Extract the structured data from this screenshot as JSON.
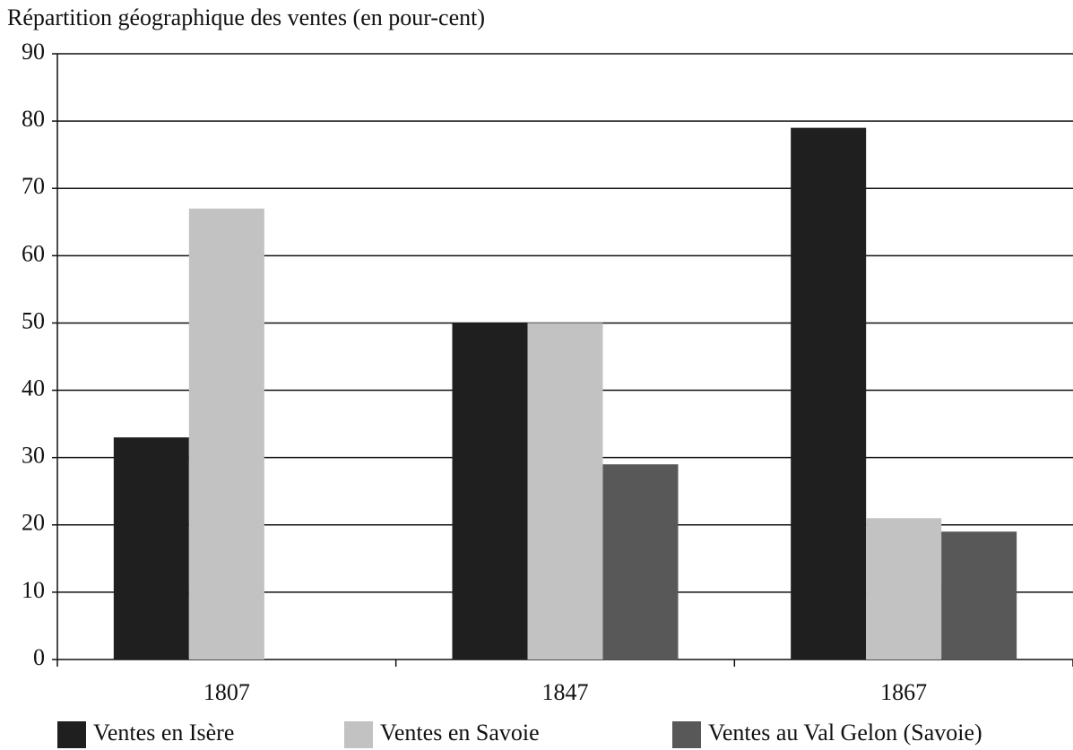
{
  "chart_data": {
    "type": "bar",
    "title": "Répartition géographique des ventes (en pour-cent)",
    "categories": [
      "1807",
      "1847",
      "1867"
    ],
    "series": [
      {
        "name": "Ventes en Isère",
        "color": "#1f1f1f",
        "values": [
          33,
          50,
          79
        ]
      },
      {
        "name": "Ventes en Savoie",
        "color": "#c2c2c2",
        "values": [
          67,
          50,
          21
        ]
      },
      {
        "name": "Ventes au Val Gelon (Savoie)",
        "color": "#585858",
        "values": [
          0,
          29,
          19
        ]
      }
    ],
    "ylim": [
      0,
      90
    ],
    "yticks": [
      0,
      10,
      20,
      30,
      40,
      50,
      60,
      70,
      80,
      90
    ],
    "grid": true,
    "legend": "bottom"
  }
}
